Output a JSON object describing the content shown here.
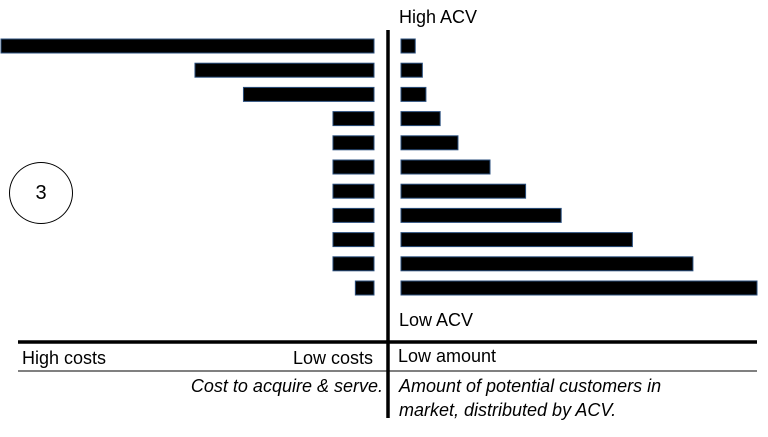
{
  "labels": {
    "high_acv": "High ACV",
    "low_acv": "Low ACV",
    "high_costs": "High costs",
    "low_costs": "Low costs",
    "low_amount": "Low amount",
    "cost_caption": "Cost to acquire & serve.",
    "market_caption_line1": "Amount of potential customers in",
    "market_caption_line2": "market, distributed by ACV."
  },
  "step_number": "3",
  "colors": {
    "bar": "#000000",
    "bar_outline": "#2b4f7d",
    "axis": "#000000"
  },
  "chart_data": [
    {
      "type": "bar",
      "orientation": "horizontal",
      "direction": "leftward",
      "xlabel": "Cost to acquire & serve.",
      "axis_ends": {
        "left": "High costs",
        "right": "Low costs"
      },
      "row_order": "top = High ACV, bottom = Low ACV",
      "values": [
        100,
        48,
        35,
        11,
        11,
        11,
        11,
        11,
        11,
        11,
        5
      ]
    },
    {
      "type": "bar",
      "orientation": "horizontal",
      "direction": "rightward",
      "xlabel": "Amount of potential customers in market, distributed by ACV.",
      "axis_ends": {
        "left": "Low amount"
      },
      "row_order": "top = High ACV, bottom = Low ACV",
      "values": [
        4,
        6,
        7,
        11,
        16,
        25,
        35,
        45,
        65,
        82,
        100
      ]
    }
  ]
}
